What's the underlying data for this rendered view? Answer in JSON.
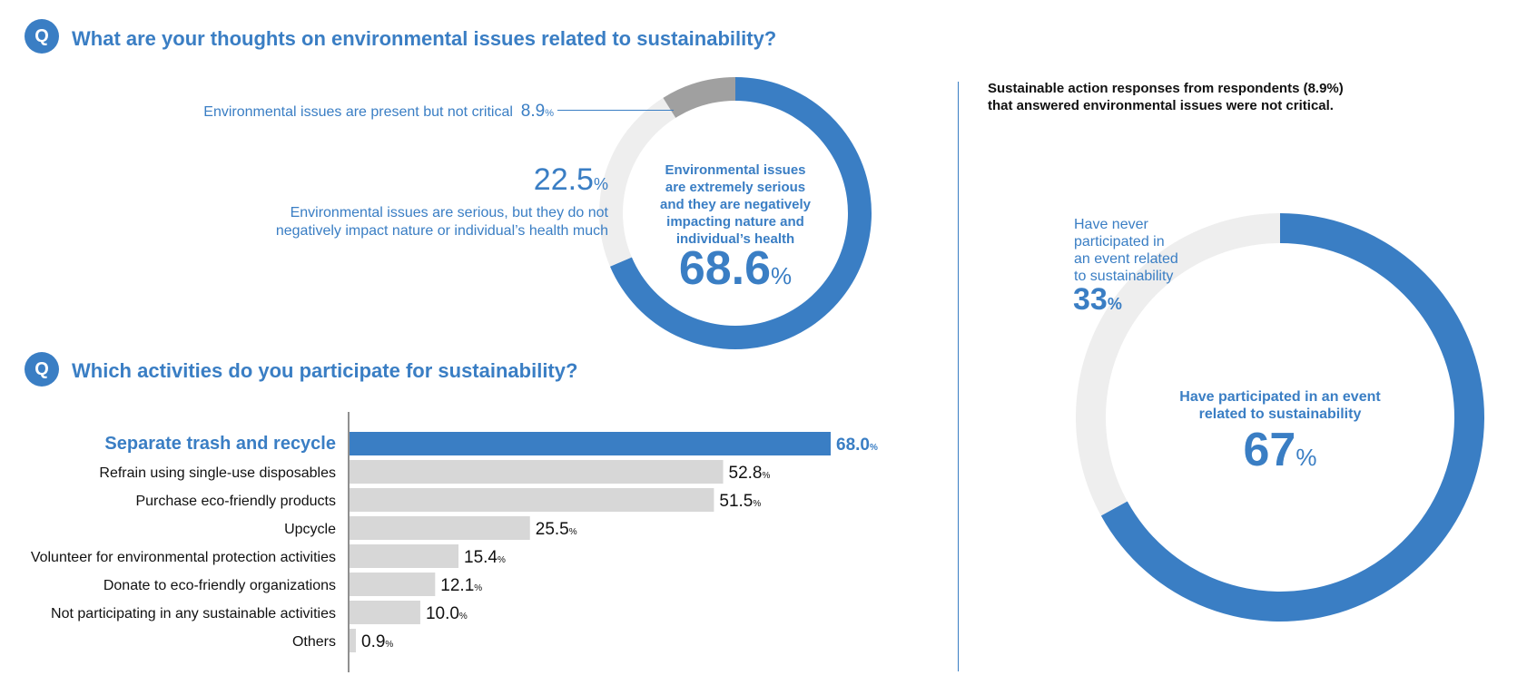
{
  "colors": {
    "accent": "#3a7ec4",
    "grey_dark": "#a0a0a0",
    "grey_light": "#eeeeee",
    "bar_grey": "#d7d7d7"
  },
  "q_badge": "Q",
  "section1": {
    "title": "What are your thoughts on environmental issues related to sustainability?",
    "pct_unit": "%",
    "label_small": "Environmental issues are present but not critical",
    "label_small_value": "8.9",
    "label_mid_value": "22.5",
    "label_mid_line1": "Environmental issues are serious, but they do not",
    "label_mid_line2": "negatively impact nature or individual’s health much",
    "center_line1": "Environmental issues",
    "center_line2": "are extremely serious",
    "center_line3": "and they are negatively",
    "center_line4": "impacting nature and",
    "center_line5": "individual’s health",
    "center_value": "68.6"
  },
  "section2": {
    "title": "Which activities do you participate for sustainability?",
    "pct_unit": "%"
  },
  "section3": {
    "header_line1": "Sustainable action responses from respondents (8.9%)",
    "header_line2": "that answered environmental issues were not critical.",
    "never_line1": "Have never",
    "never_line2": "participated in",
    "never_line3": "an event related",
    "never_line4": "to sustainability",
    "never_value": "33",
    "center_line1": "Have participated in an event",
    "center_line2": "related to sustainability",
    "center_value": "67",
    "pct_unit": "%"
  },
  "chart_data": [
    {
      "type": "pie",
      "donut": true,
      "title": "What are your thoughts on environmental issues related to sustainability?",
      "slices": [
        {
          "label": "Environmental issues are extremely serious and they are negatively impacting nature and individual’s health",
          "value": 68.6,
          "color": "#3a7ec4"
        },
        {
          "label": "Environmental issues are serious, but they do not negatively impact nature or individual’s health much",
          "value": 22.5,
          "color": "#eeeeee"
        },
        {
          "label": "Environmental issues are present but not critical",
          "value": 8.9,
          "color": "#a0a0a0"
        }
      ]
    },
    {
      "type": "bar",
      "orientation": "horizontal",
      "title": "Which activities do you participate for sustainability?",
      "categories": [
        "Separate trash and recycle",
        "Refrain using single-use disposables",
        "Purchase eco-friendly products",
        "Upcycle",
        "Volunteer for environmental protection activities",
        "Donate to eco-friendly organizations",
        "Not participating in any sustainable activities",
        "Others"
      ],
      "values": [
        68.0,
        52.8,
        51.5,
        25.5,
        15.4,
        12.1,
        10.0,
        0.9
      ],
      "value_labels": [
        "68.0",
        "52.8",
        "51.5",
        "25.5",
        "15.4",
        "12.1",
        "10.0",
        "0.9"
      ],
      "highlight_index": 0,
      "xlim": [
        0,
        68.0
      ]
    },
    {
      "type": "pie",
      "donut": true,
      "title": "Sustainable action responses from respondents (8.9%) that answered environmental issues were not critical.",
      "slices": [
        {
          "label": "Have participated in an event related to sustainability",
          "value": 67,
          "color": "#3a7ec4"
        },
        {
          "label": "Have never participated in an event related to sustainability",
          "value": 33,
          "color": "#eeeeee"
        }
      ]
    }
  ]
}
